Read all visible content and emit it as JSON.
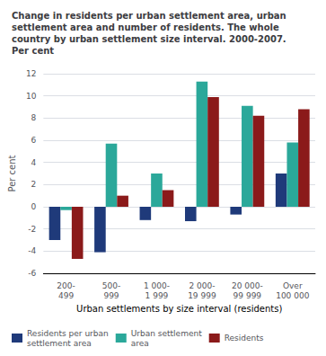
{
  "chart_data": {
    "type": "bar",
    "title": "Change in residents per urban settlement area, urban\nsettlement area and number of residents. The whole\ncountry by urban settlement size interval. 2000-2007.\nPer cent",
    "ylabel": "Per cent",
    "xlabel": "Urban settlements by size interval (residents)",
    "categories": [
      "200-\n499",
      "500-\n999",
      "1 000-\n1 999",
      "2 000-\n19 999",
      "20 000-\n99 999",
      "Over\n100 000"
    ],
    "series": [
      {
        "name": "Residents per urban\nsettlement area",
        "color": "#1F3A7A",
        "values": [
          -3.0,
          -4.1,
          -1.2,
          -1.3,
          -0.7,
          3.0
        ]
      },
      {
        "name": "Urban settlement\narea",
        "color": "#2BA89A",
        "values": [
          -0.3,
          5.7,
          3.0,
          11.3,
          9.1,
          5.8
        ]
      },
      {
        "name": "Residents",
        "color": "#8B1A1A",
        "values": [
          -4.7,
          1.0,
          1.5,
          9.9,
          8.2,
          8.8
        ]
      }
    ],
    "ylim": [
      -6,
      12
    ],
    "yticks": [
      -6,
      -4,
      -2,
      0,
      2,
      4,
      6,
      8,
      10,
      12
    ],
    "grid": true,
    "legend": "bottom"
  }
}
